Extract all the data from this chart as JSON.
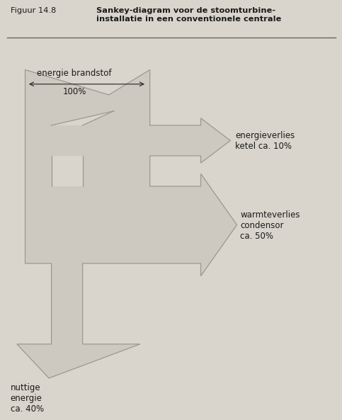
{
  "title_prefix": "Figuur 14.8",
  "title_bold": "Sankey-diagram voor de stoomturbine-\ninstallatie in een conventionele centrale",
  "bg_color": "#d9d5cc",
  "flow_fill": "#cdc9c0",
  "flow_edge": "#999990",
  "text_color": "#1a1a1a",
  "label_brandstof_top": "energie brandstof",
  "label_brandstof_bot": "100%",
  "label_ketel": "energieverlies\nketel ca. 10%",
  "label_condensor": "warmteverlies\ncondensor\nca. 50%",
  "label_nuttig": "nuttige\nenergie\nca. 40%"
}
